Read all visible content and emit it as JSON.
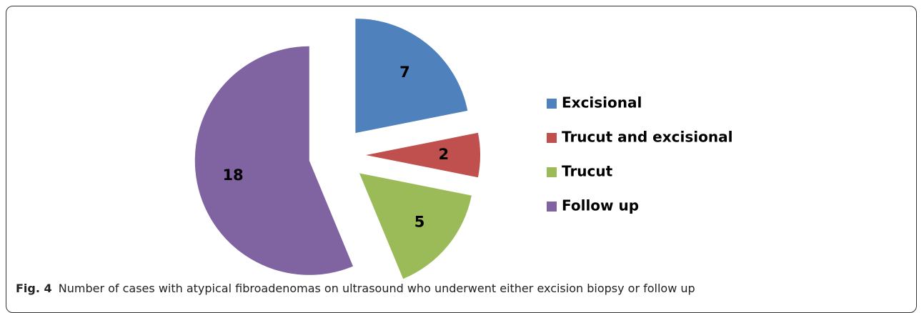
{
  "chart_data": {
    "type": "pie",
    "categories": [
      "Excisional",
      "Trucut and excisional",
      "Trucut",
      "Follow up"
    ],
    "values": [
      7,
      2,
      5,
      18
    ],
    "colors": [
      "#4f81bd",
      "#c0504d",
      "#9bbb59",
      "#8064a2"
    ],
    "exploded": true,
    "legend": "right"
  },
  "caption": {
    "label": "Fig. 4",
    "text": "Number of cases with atypical fibroadenomas on ultrasound who underwent either excision biopsy or follow up"
  }
}
